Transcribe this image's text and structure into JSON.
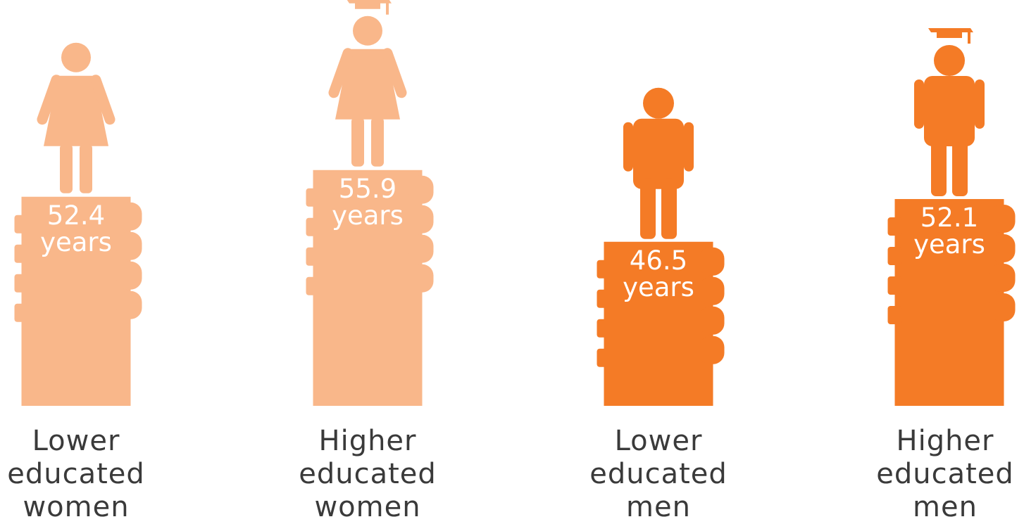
{
  "chart_data": {
    "type": "bar",
    "categories": [
      "Lower educated women",
      "Higher educated women",
      "Lower educated men",
      "Higher educated men"
    ],
    "values": [
      52.4,
      55.9,
      46.5,
      52.1
    ],
    "value_labels": [
      "52.4 years",
      "55.9 years",
      "46.5 years",
      "52.1 years"
    ],
    "colors": [
      "#f9b78a",
      "#f9b78a",
      "#f47b26",
      "#f47b26"
    ],
    "ylim": [
      25,
      78
    ]
  }
}
